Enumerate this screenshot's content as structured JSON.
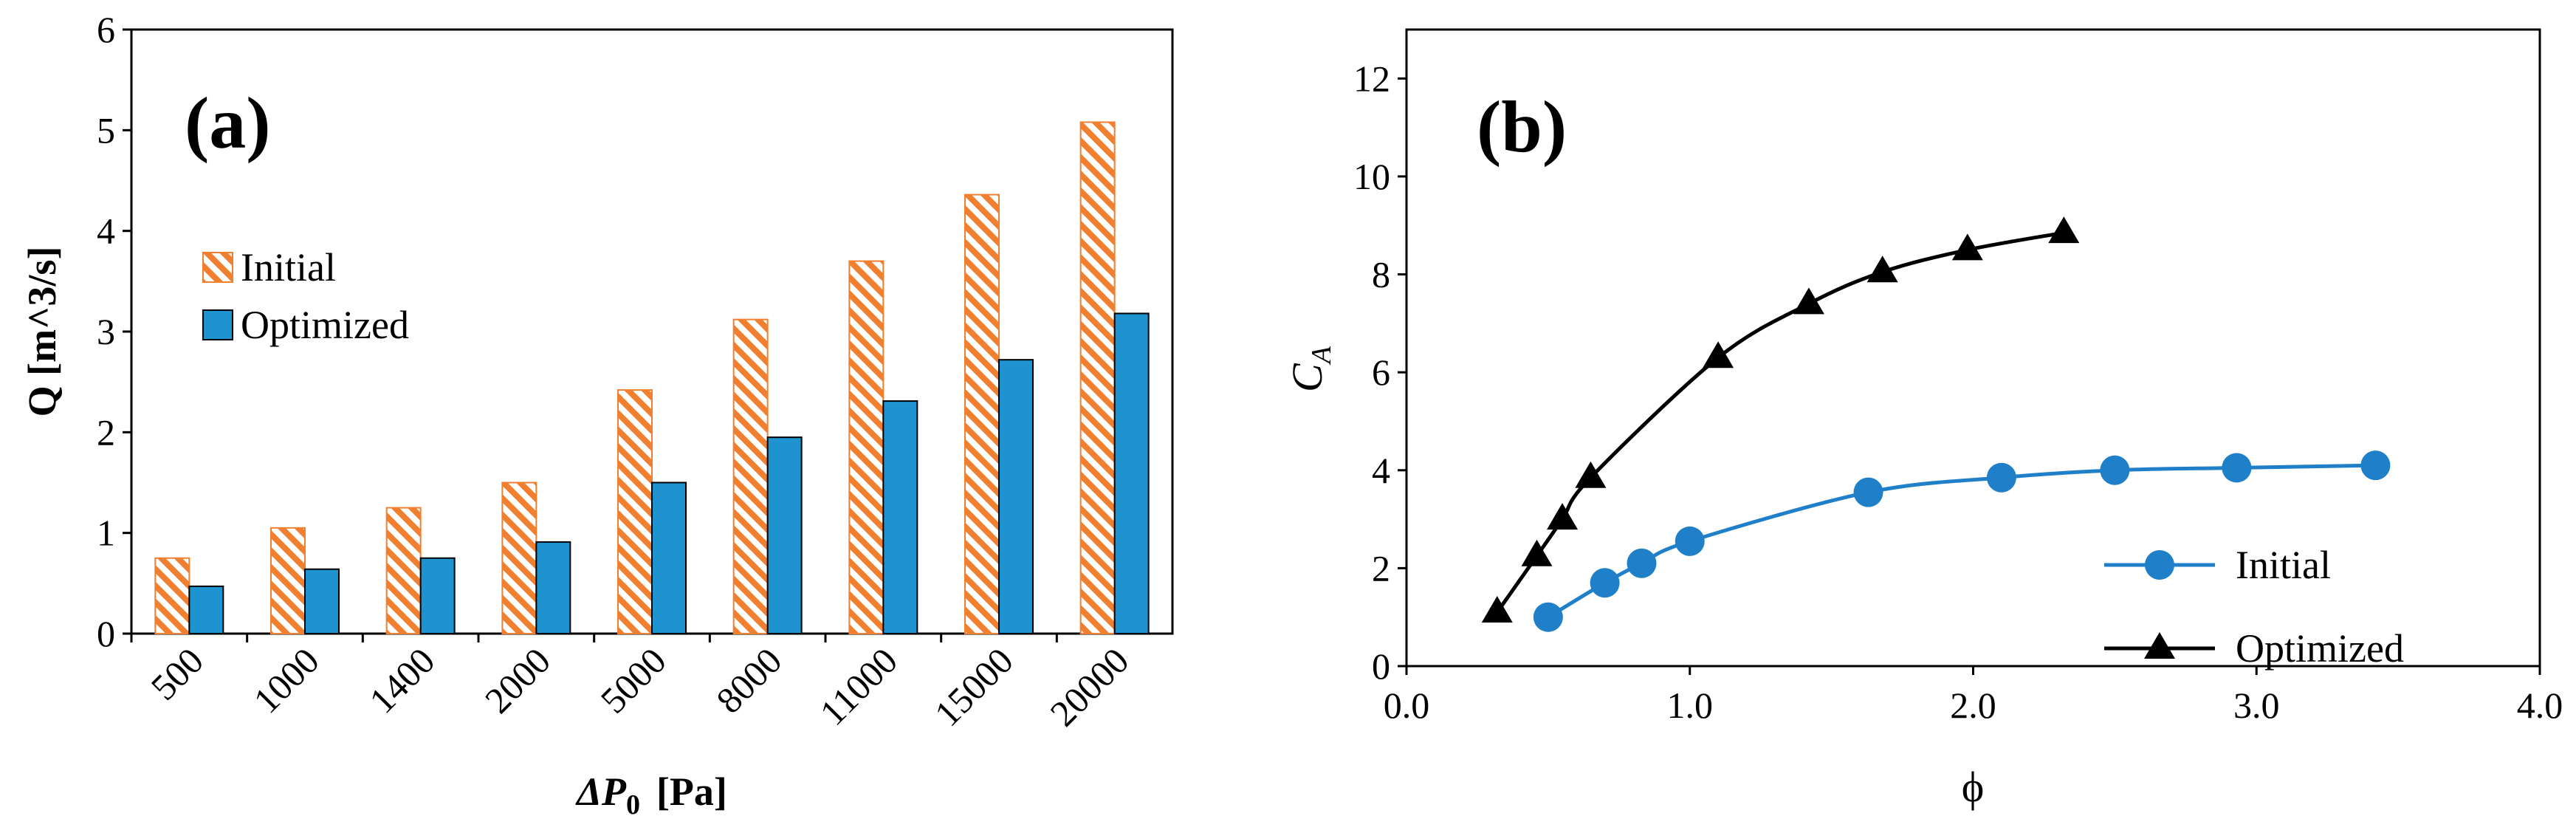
{
  "chart_data": [
    {
      "type": "bar",
      "panel_label": "(a)",
      "ylabel": "Q [m^3/s]",
      "xlabel_main": "ΔP",
      "xlabel_sub": "0",
      "xlabel_unit": "[Pa]",
      "categories": [
        "500",
        "1000",
        "1400",
        "2000",
        "5000",
        "8000",
        "11000",
        "15000",
        "20000"
      ],
      "series": [
        {
          "name": "Initial",
          "values": [
            0.75,
            1.05,
            1.25,
            1.5,
            2.42,
            3.12,
            3.7,
            4.36,
            5.08
          ],
          "color": "#f08030",
          "pattern": "hatched"
        },
        {
          "name": "Optimized",
          "values": [
            0.47,
            0.64,
            0.75,
            0.91,
            1.5,
            1.95,
            2.31,
            2.72,
            3.18
          ],
          "color": "#1f93d0",
          "pattern": "solid"
        }
      ],
      "ylim": [
        0,
        6
      ],
      "yticks": [
        "0",
        "1",
        "2",
        "3",
        "4",
        "5",
        "6"
      ],
      "legend_position": "upper-left"
    },
    {
      "type": "line",
      "panel_label": "(b)",
      "ylabel_main": "C",
      "ylabel_sub": "A",
      "xlabel": "ϕ",
      "xlim": [
        0,
        4
      ],
      "ylim": [
        0,
        13
      ],
      "xticks": [
        "0.0",
        "1.0",
        "2.0",
        "3.0",
        "4.0"
      ],
      "yticks": [
        "0",
        "2",
        "4",
        "6",
        "8",
        "10",
        "12"
      ],
      "series": [
        {
          "name": "Initial",
          "marker": "circle",
          "color": "#1f7fc8",
          "x": [
            0.5,
            0.7,
            0.83,
            1.0,
            1.63,
            2.1,
            2.5,
            2.93,
            3.42
          ],
          "y": [
            1.0,
            1.7,
            2.1,
            2.55,
            3.55,
            3.85,
            4.0,
            4.05,
            4.1
          ]
        },
        {
          "name": "Optimized",
          "marker": "triangle",
          "color": "#000000",
          "x": [
            0.32,
            0.46,
            0.55,
            0.65,
            1.1,
            1.42,
            1.68,
            1.98,
            2.32
          ],
          "y": [
            1.1,
            2.25,
            3.0,
            3.85,
            6.3,
            7.4,
            8.05,
            8.5,
            8.85
          ]
        }
      ],
      "legend_position": "lower-right"
    }
  ]
}
